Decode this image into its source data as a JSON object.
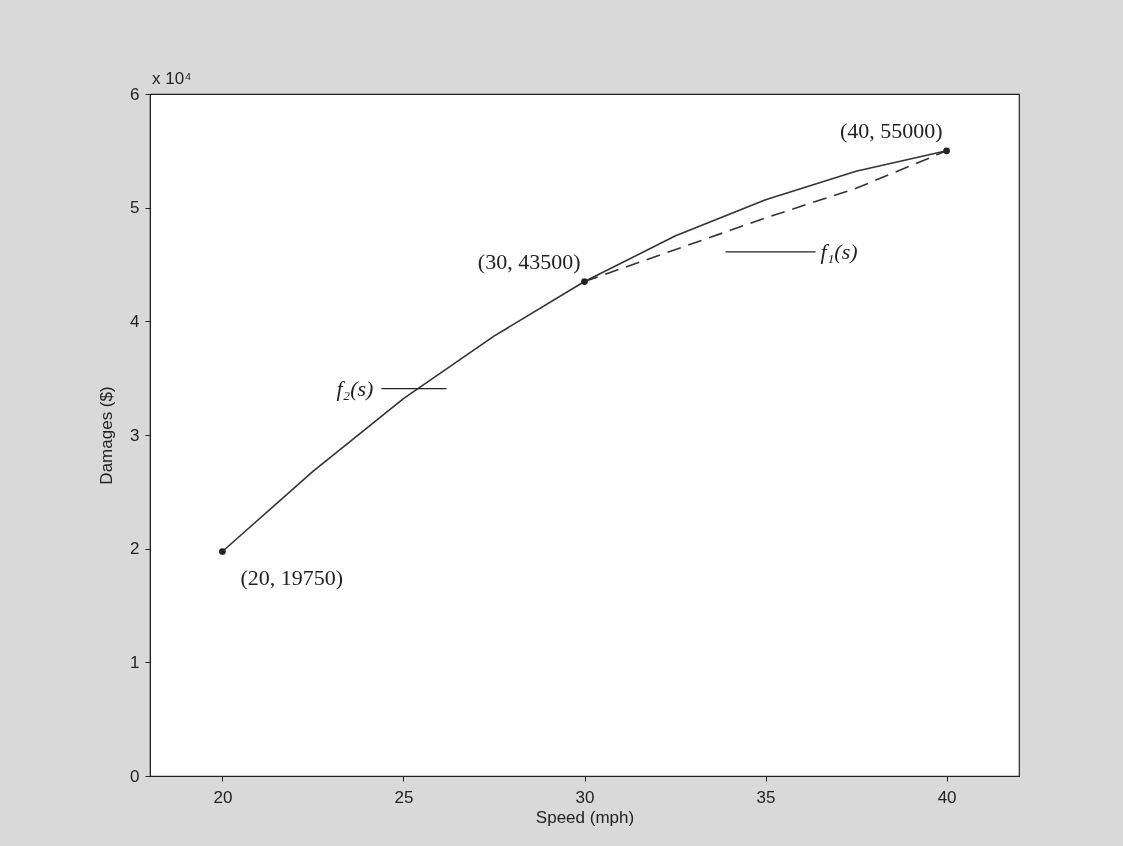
{
  "chart_data": {
    "type": "line",
    "xlabel": "Speed (mph)",
    "ylabel": "Damages ($)",
    "xlim": [
      18,
      42
    ],
    "xticks": [
      20,
      25,
      30,
      35,
      40
    ],
    "ylim": [
      0,
      6
    ],
    "yticks": [
      0,
      1,
      2,
      3,
      4,
      5,
      6
    ],
    "series": [
      {
        "name": "f₂(s)",
        "color": "#333333",
        "line_style": "solid",
        "x": [
          20,
          22.5,
          25,
          27.5,
          30,
          32.5,
          35,
          37.5,
          40
        ],
        "values": [
          1.975,
          2.68,
          3.32,
          3.87,
          4.35,
          4.75,
          5.07,
          5.32,
          5.5
        ]
      },
      {
        "name": "f₁(s)",
        "color": "#333333",
        "line_style": "dashed",
        "x": [
          30,
          32.5,
          35,
          37.5,
          40
        ],
        "values": [
          4.35,
          4.63,
          4.91,
          5.17,
          5.5
        ]
      },
      {
        "type": "scatter",
        "marker": "circle",
        "color": "#222222",
        "x": [
          20,
          30,
          40
        ],
        "values": [
          1.975,
          4.35,
          5.5
        ]
      }
    ],
    "annotations": [
      "x 10⁴",
      {
        "text": "(20, 19750)",
        "x": 20,
        "y": 1.975
      },
      {
        "text": "(30, 43500)",
        "x": 30,
        "y": 4.35
      },
      {
        "text": "(40, 55000)",
        "x": 40,
        "y": 5.5
      }
    ]
  }
}
